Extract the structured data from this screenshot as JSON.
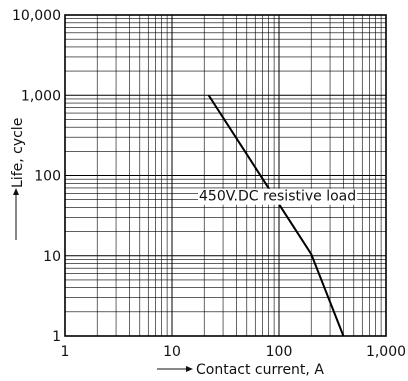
{
  "chart_data": {
    "type": "line",
    "xscale": "log",
    "yscale": "log",
    "xlim": [
      1,
      1000
    ],
    "ylim": [
      1,
      10000
    ],
    "grid": true,
    "x_tick_labels": [
      "1",
      "10",
      "100",
      "1,000"
    ],
    "y_tick_labels": [
      "1",
      "10",
      "100",
      "1,000",
      "10,000"
    ],
    "xlabel": "Contact current, A",
    "ylabel": "Life, cycle",
    "series": [
      {
        "x": [
          22,
          200,
          400
        ],
        "y": [
          1000,
          10.5,
          1
        ]
      }
    ],
    "annotations": [
      {
        "text": "450V.DC resistive load",
        "x": 97,
        "y": 56
      }
    ],
    "colors": {
      "line": "#000000",
      "grid": "#000000",
      "background": "#ffffff"
    }
  }
}
